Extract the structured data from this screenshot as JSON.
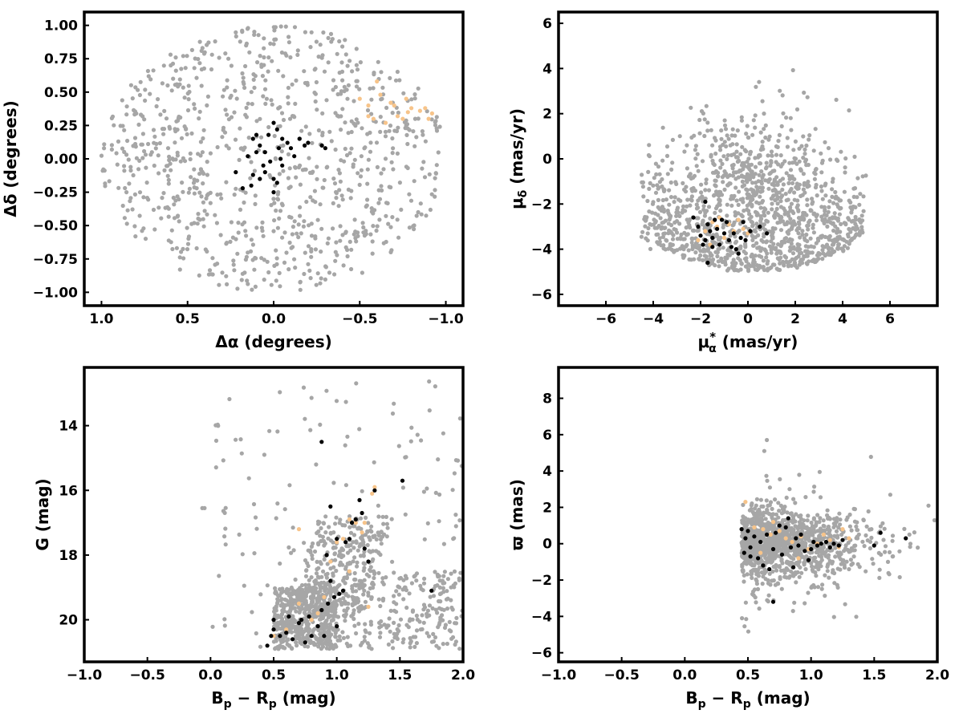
{
  "colors": {
    "field": "#a6a6a6",
    "members": "#000000",
    "highlight": "#f7c48a",
    "axes": "#000000",
    "background": "#ffffff"
  },
  "chart_data": [
    {
      "id": "sky",
      "type": "scatter",
      "xlabel_main": "Δα",
      "xlabel_unit": " (degrees)",
      "ylabel_main": "Δδ",
      "ylabel_unit": " (degrees)",
      "xlim": [
        1.1,
        -1.1
      ],
      "ylim": [
        -1.1,
        1.1
      ],
      "x_ticks": [
        1.0,
        0.5,
        0.0,
        -0.5,
        -1.0
      ],
      "x_tick_labels": [
        "1.0",
        "0.5",
        "0.0",
        "−0.5",
        "−1.0"
      ],
      "y_ticks": [
        1.0,
        0.75,
        0.5,
        0.25,
        0.0,
        -0.25,
        -0.5,
        -0.75,
        -1.0
      ],
      "y_tick_labels": [
        "1.00",
        "0.75",
        "0.50",
        "0.25",
        "0.00",
        "−0.25",
        "−0.50",
        "−0.75",
        "−1.00"
      ],
      "series": [
        {
          "role": "field",
          "distribution": "uniform disk",
          "count": 900,
          "center": [
            0,
            0
          ],
          "radius": 1.0
        },
        {
          "role": "highlight",
          "points": [
            [
              -0.5,
              0.45
            ],
            [
              -0.55,
              0.4
            ],
            [
              -0.6,
              0.58
            ],
            [
              -0.62,
              0.48
            ],
            [
              -0.68,
              0.42
            ],
            [
              -0.72,
              0.32
            ],
            [
              -0.75,
              0.3
            ],
            [
              -0.77,
              0.45
            ],
            [
              -0.8,
              0.38
            ],
            [
              -0.85,
              0.36
            ],
            [
              -0.9,
              0.3
            ],
            [
              -0.92,
              0.34
            ],
            [
              -0.55,
              0.32
            ],
            [
              -0.58,
              0.3
            ],
            [
              -0.65,
              0.27
            ],
            [
              -0.78,
              0.35
            ],
            [
              -0.88,
              0.38
            ],
            [
              -0.7,
              0.4
            ]
          ]
        },
        {
          "role": "members",
          "points": [
            [
              0.0,
              0.27
            ],
            [
              -0.02,
              0.22
            ],
            [
              0.03,
              0.18
            ],
            [
              -0.05,
              0.15
            ],
            [
              -0.08,
              0.12
            ],
            [
              -0.1,
              0.08
            ],
            [
              0.08,
              0.1
            ],
            [
              0.1,
              0.05
            ],
            [
              0.12,
              0.15
            ],
            [
              0.15,
              0.02
            ],
            [
              0.05,
              0.05
            ],
            [
              -0.03,
              0.08
            ],
            [
              -0.12,
              0.02
            ],
            [
              -0.15,
              0.15
            ],
            [
              -0.18,
              0.1
            ],
            [
              -0.2,
              0.12
            ],
            [
              -0.28,
              0.1
            ],
            [
              -0.3,
              0.08
            ],
            [
              0.02,
              -0.02
            ],
            [
              -0.05,
              -0.05
            ],
            [
              0.05,
              -0.1
            ],
            [
              0.0,
              -0.15
            ],
            [
              0.08,
              -0.15
            ],
            [
              0.12,
              -0.12
            ],
            [
              -0.02,
              -0.18
            ],
            [
              0.0,
              -0.25
            ],
            [
              0.18,
              -0.22
            ],
            [
              0.22,
              -0.1
            ],
            [
              0.13,
              -0.2
            ],
            [
              0.06,
              -0.05
            ],
            [
              -0.04,
              0.0
            ],
            [
              0.1,
              0.18
            ]
          ]
        }
      ]
    },
    {
      "id": "pm",
      "type": "scatter",
      "xlabel_main": "μ",
      "xlabel_sub": "α",
      "xlabel_sup": "*",
      "xlabel_unit": "  (mas/yr)",
      "ylabel_main": "μ",
      "ylabel_sub": "δ",
      "ylabel_unit": " (mas/yr)",
      "xlim": [
        -8,
        8
      ],
      "ylim": [
        -6.5,
        6.5
      ],
      "x_ticks": [
        -6,
        -4,
        -2,
        0,
        2,
        4,
        6
      ],
      "x_tick_labels": [
        "−6",
        "−4",
        "−2",
        "0",
        "2",
        "4",
        "6"
      ],
      "y_ticks": [
        6,
        4,
        2,
        0,
        -2,
        -4,
        -6
      ],
      "y_tick_labels": [
        "6",
        "4",
        "2",
        "0",
        "−2",
        "−4",
        "−6"
      ],
      "series": [
        {
          "role": "field",
          "distribution": "broad cloud",
          "count": 1300,
          "center": [
            0.3,
            -2.0
          ],
          "x_range": [
            -4.6,
            5.0
          ],
          "y_range": [
            -5.0,
            4.1
          ]
        },
        {
          "role": "highlight",
          "points": [
            [
              -2.1,
              -3.6
            ],
            [
              -1.8,
              -3.2
            ],
            [
              -1.5,
              -2.8
            ],
            [
              -1.3,
              -3.0
            ],
            [
              -1.0,
              -3.5
            ],
            [
              -0.8,
              -2.9
            ],
            [
              -0.6,
              -3.2
            ],
            [
              -0.4,
              -2.7
            ],
            [
              -0.2,
              -3.1
            ],
            [
              0.0,
              -3.3
            ],
            [
              -1.6,
              -3.8
            ],
            [
              -1.2,
              -2.6
            ]
          ]
        },
        {
          "role": "members",
          "points": [
            [
              -2.3,
              -2.6
            ],
            [
              -2.1,
              -3.0
            ],
            [
              -2.0,
              -3.4
            ],
            [
              -1.9,
              -3.8
            ],
            [
              -1.8,
              -3.6
            ],
            [
              -1.7,
              -2.9
            ],
            [
              -1.6,
              -3.2
            ],
            [
              -1.5,
              -3.5
            ],
            [
              -1.4,
              -2.7
            ],
            [
              -1.3,
              -3.1
            ],
            [
              -1.2,
              -3.8
            ],
            [
              -1.0,
              -3.3
            ],
            [
              -0.9,
              -2.8
            ],
            [
              -0.8,
              -3.6
            ],
            [
              -0.7,
              -3.9
            ],
            [
              -0.6,
              -3.3
            ],
            [
              -0.5,
              -4.0
            ],
            [
              -0.4,
              -4.2
            ],
            [
              -0.3,
              -3.5
            ],
            [
              -0.2,
              -2.8
            ],
            [
              -0.1,
              -3.6
            ],
            [
              0.1,
              -3.2
            ],
            [
              0.5,
              -3.0
            ],
            [
              0.8,
              -3.3
            ],
            [
              -1.8,
              -1.9
            ],
            [
              -1.5,
              -3.9
            ],
            [
              -1.7,
              -4.6
            ],
            [
              -1.1,
              -2.7
            ]
          ]
        }
      ]
    },
    {
      "id": "cmd",
      "type": "scatter",
      "xlabel_main": "B",
      "xlabel_sub1": "p",
      "xlabel_mid": " − R",
      "xlabel_sub2": "p",
      "xlabel_unit": " (mag)",
      "ylabel_main": "G (mag)",
      "xlim": [
        -1.0,
        2.0
      ],
      "ylim": [
        21.3,
        12.2
      ],
      "x_ticks": [
        -1.0,
        -0.5,
        0.0,
        0.5,
        1.0,
        1.5,
        2.0
      ],
      "x_tick_labels": [
        "−1.0",
        "−0.5",
        "0.0",
        "0.5",
        "1.0",
        "1.5",
        "2.0"
      ],
      "y_ticks": [
        20,
        18,
        16,
        14
      ],
      "y_tick_labels": [
        "20",
        "18",
        "16",
        "14"
      ],
      "series": [
        {
          "role": "field",
          "distribution": "sequence",
          "count": 1200,
          "x_range": [
            -0.1,
            2.0
          ],
          "y_range": [
            12.6,
            20.9
          ]
        },
        {
          "role": "highlight",
          "points": [
            [
              0.5,
              20.5
            ],
            [
              0.6,
              20.3
            ],
            [
              0.7,
              19.5
            ],
            [
              0.8,
              20.0
            ],
            [
              0.85,
              19.8
            ],
            [
              0.9,
              19.3
            ],
            [
              0.95,
              18.2
            ],
            [
              1.0,
              17.6
            ],
            [
              1.05,
              17.5
            ],
            [
              1.1,
              18.5
            ],
            [
              1.15,
              17.0
            ],
            [
              1.2,
              17.3
            ],
            [
              1.25,
              19.6
            ],
            [
              1.28,
              16.1
            ],
            [
              0.7,
              17.2
            ],
            [
              1.1,
              16.9
            ],
            [
              1.22,
              17.0
            ],
            [
              1.3,
              15.9
            ]
          ]
        },
        {
          "role": "members",
          "points": [
            [
              0.45,
              20.8
            ],
            [
              0.48,
              20.5
            ],
            [
              0.5,
              20.3
            ],
            [
              0.55,
              20.5
            ],
            [
              0.6,
              20.4
            ],
            [
              0.62,
              19.9
            ],
            [
              0.65,
              20.6
            ],
            [
              0.7,
              20.1
            ],
            [
              0.72,
              20.0
            ],
            [
              0.75,
              20.7
            ],
            [
              0.78,
              19.9
            ],
            [
              0.8,
              20.5
            ],
            [
              0.85,
              20.2
            ],
            [
              0.88,
              19.7
            ],
            [
              0.9,
              20.5
            ],
            [
              0.93,
              19.5
            ],
            [
              0.95,
              18.8
            ],
            [
              0.98,
              19.3
            ],
            [
              1.0,
              20.2
            ],
            [
              1.02,
              19.2
            ],
            [
              1.05,
              19.1
            ],
            [
              1.07,
              17.6
            ],
            [
              1.1,
              17.5
            ],
            [
              1.12,
              17.0
            ],
            [
              1.15,
              16.9
            ],
            [
              1.18,
              16.3
            ],
            [
              1.2,
              16.7
            ],
            [
              1.22,
              17.8
            ],
            [
              1.25,
              18.2
            ],
            [
              1.3,
              16.0
            ],
            [
              1.0,
              17.5
            ],
            [
              0.92,
              18.0
            ],
            [
              0.88,
              14.5
            ],
            [
              0.95,
              16.5
            ],
            [
              1.52,
              15.7
            ],
            [
              1.75,
              19.1
            ],
            [
              0.5,
              20.0
            ]
          ]
        }
      ]
    },
    {
      "id": "parallax",
      "type": "scatter",
      "xlabel_main": "B",
      "xlabel_sub1": "p",
      "xlabel_mid": " − R",
      "xlabel_sub2": "p",
      "xlabel_unit": " (mag)",
      "ylabel_main": "ϖ (mas)",
      "xlim": [
        -1.0,
        2.0
      ],
      "ylim": [
        -6.5,
        9.7
      ],
      "x_ticks": [
        -1.0,
        -0.5,
        0.0,
        0.5,
        1.0,
        1.5,
        2.0
      ],
      "x_tick_labels": [
        "−1.0",
        "−0.5",
        "0.0",
        "0.5",
        "1.0",
        "1.5",
        "2.0"
      ],
      "y_ticks": [
        8,
        6,
        4,
        2,
        0,
        -2,
        -4,
        -6
      ],
      "y_tick_labels": [
        "8",
        "6",
        "4",
        "2",
        "0",
        "−2",
        "−4",
        "−6"
      ],
      "series": [
        {
          "role": "field",
          "distribution": "band",
          "count": 1200,
          "x_range": [
            -0.1,
            2.0
          ],
          "y_range": [
            -5.8,
            9.0
          ]
        },
        {
          "role": "highlight",
          "points": [
            [
              0.48,
              2.3
            ],
            [
              0.55,
              0.9
            ],
            [
              0.62,
              0.8
            ],
            [
              0.68,
              0.5
            ],
            [
              0.75,
              0.7
            ],
            [
              0.8,
              0.3
            ],
            [
              0.85,
              0.1
            ],
            [
              0.92,
              0.4
            ],
            [
              0.98,
              -0.3
            ],
            [
              1.05,
              0.0
            ],
            [
              1.15,
              0.2
            ],
            [
              1.22,
              -0.2
            ],
            [
              1.25,
              0.8
            ],
            [
              1.3,
              0.3
            ],
            [
              0.6,
              -0.5
            ],
            [
              0.7,
              1.2
            ],
            [
              0.9,
              -0.8
            ],
            [
              1.1,
              0.5
            ]
          ]
        },
        {
          "role": "members",
          "points": [
            [
              0.45,
              0.8
            ],
            [
              0.47,
              -0.5
            ],
            [
              0.48,
              0.3
            ],
            [
              0.5,
              0.7
            ],
            [
              0.52,
              -0.2
            ],
            [
              0.55,
              0.4
            ],
            [
              0.58,
              -0.8
            ],
            [
              0.6,
              0.1
            ],
            [
              0.62,
              -1.2
            ],
            [
              0.65,
              0.5
            ],
            [
              0.67,
              -1.4
            ],
            [
              0.7,
              -0.3
            ],
            [
              0.72,
              0.6
            ],
            [
              0.75,
              1.0
            ],
            [
              0.77,
              -0.6
            ],
            [
              0.8,
              0.9
            ],
            [
              0.82,
              1.4
            ],
            [
              0.84,
              -0.2
            ],
            [
              0.86,
              -1.3
            ],
            [
              0.88,
              0.3
            ],
            [
              0.9,
              -0.1
            ],
            [
              0.92,
              0.5
            ],
            [
              0.95,
              -0.4
            ],
            [
              0.98,
              -0.9
            ],
            [
              1.0,
              -0.3
            ],
            [
              1.02,
              0.1
            ],
            [
              1.05,
              -0.1
            ],
            [
              1.08,
              0.0
            ],
            [
              1.12,
              0.1
            ],
            [
              1.15,
              -0.2
            ],
            [
              1.18,
              0.0
            ],
            [
              1.22,
              -0.1
            ],
            [
              1.25,
              0.2
            ],
            [
              1.5,
              -0.1
            ],
            [
              1.75,
              0.3
            ],
            [
              0.7,
              -3.2
            ],
            [
              0.52,
              -0.7
            ],
            [
              1.55,
              0.6
            ]
          ]
        }
      ]
    }
  ]
}
